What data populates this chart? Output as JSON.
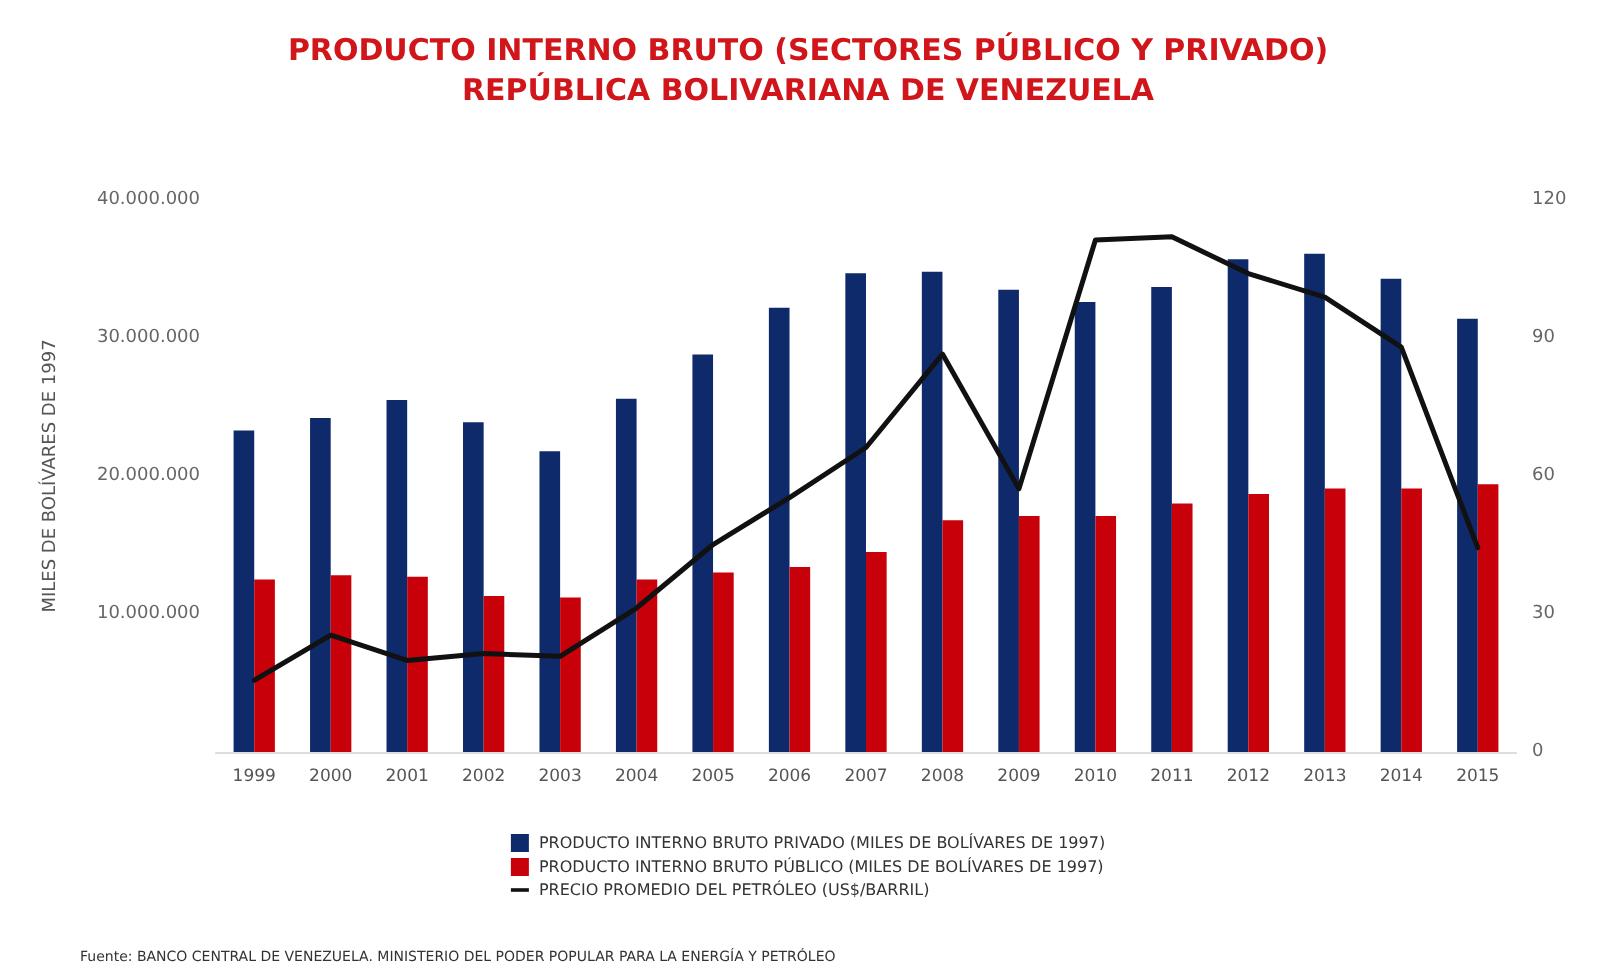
{
  "chart_data": {
    "type": "bar",
    "title": "PRODUCTO INTERNO BRUTO (SECTORES PÚBLICO Y PRIVADO)\nREPÚBLICA BOLIVARIANA DE VENEZUELA",
    "ylabel": "MILES DE BOLÍVARES DE 1997",
    "categories": [
      "1999",
      "2000",
      "2001",
      "2002",
      "2003",
      "2004",
      "2005",
      "2006",
      "2007",
      "2008",
      "2009",
      "2010",
      "2011",
      "2012",
      "2013",
      "2014",
      "2015"
    ],
    "series": [
      {
        "name": "PRODUCTO INTERNO BRUTO PRIVADO (MILES DE BOLÍVARES DE 1997)",
        "color": "#0f2a6b",
        "values": [
          23300000,
          24200000,
          25500000,
          23900000,
          21800000,
          25600000,
          28800000,
          32200000,
          34700000,
          34800000,
          33500000,
          32600000,
          33700000,
          35700000,
          36100000,
          34300000,
          31400000
        ]
      },
      {
        "name": "PRODUCTO INTERNO BRUTO PÚBLICO (MILES DE BOLÍVARES DE 1997)",
        "color": "#c8000a",
        "values": [
          12500000,
          12800000,
          12700000,
          11300000,
          11200000,
          12500000,
          13000000,
          13400000,
          14500000,
          16800000,
          17100000,
          17100000,
          18000000,
          18700000,
          19100000,
          19100000,
          19400000
        ]
      },
      {
        "name": "PRECIO PROMEDIO DEL PETRÓLEO (US$/BARRIL)",
        "type": "line",
        "axis": "y2",
        "color": "#111111",
        "values": [
          15.6,
          25.4,
          19.9,
          21.4,
          20.8,
          31.3,
          45.1,
          55.3,
          66.2,
          86.5,
          57.2,
          111.3,
          112,
          104,
          98.9,
          88,
          44.4
        ]
      }
    ],
    "ylim": [
      0,
      40000000
    ],
    "yticks": [
      {
        "value": 0,
        "label": null
      },
      {
        "value": 10000000,
        "label": "10.000.000"
      },
      {
        "value": 20000000,
        "label": "20.000.000"
      },
      {
        "value": 30000000,
        "label": "30.000.000"
      },
      {
        "value": 40000000,
        "label": "40.000.000"
      }
    ],
    "y2lim": [
      0,
      120
    ],
    "y2ticks": [
      0,
      30,
      60,
      90,
      120
    ],
    "grid": false,
    "legend": "bottom",
    "marker": "none",
    "line_style": "solid",
    "annotations": [
      "Fuente: BANCO CENTRAL DE VENEZUELA. MINISTERIO DEL PODER POPULAR PARA LA ENERGÍA Y PETRÓLEO"
    ]
  }
}
